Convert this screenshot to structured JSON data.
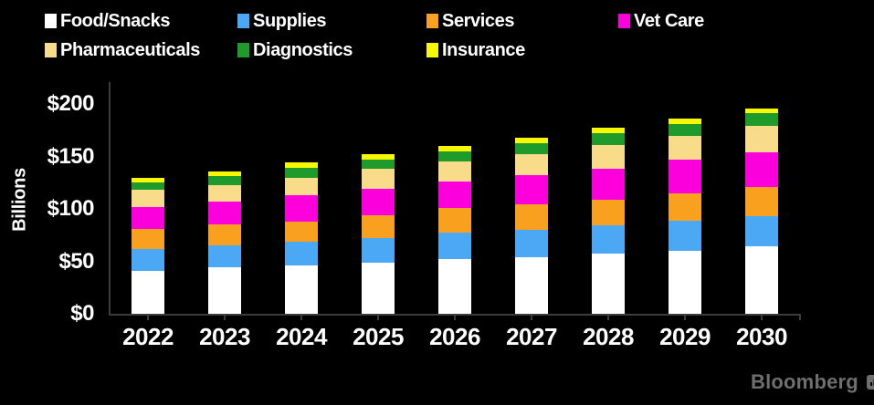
{
  "legend": {
    "items": [
      {
        "label": "Food/Snacks",
        "color": "#ffffff",
        "row": 0,
        "col": 0
      },
      {
        "label": "Supplies",
        "color": "#4ba8f5",
        "row": 0,
        "col": 1
      },
      {
        "label": "Services",
        "color": "#f9a01e",
        "row": 0,
        "col": 2
      },
      {
        "label": "Vet Care",
        "color": "#fb00dc",
        "row": 0,
        "col": 3
      },
      {
        "label": "Pharmaceuticals",
        "color": "#f9dc8a",
        "row": 1,
        "col": 0
      },
      {
        "label": "Diagnostics",
        "color": "#1e9b2b",
        "row": 1,
        "col": 1
      },
      {
        "label": "Insurance",
        "color": "#f8f800",
        "row": 1,
        "col": 2
      }
    ]
  },
  "chart_data": {
    "type": "bar",
    "stacked": true,
    "categories": [
      "2022",
      "2023",
      "2024",
      "2025",
      "2026",
      "2027",
      "2028",
      "2029",
      "2030"
    ],
    "series": [
      {
        "name": "Food/Snacks",
        "color": "#ffffff",
        "values": [
          41,
          44,
          46,
          49,
          52,
          54,
          57,
          60,
          64
        ]
      },
      {
        "name": "Supplies",
        "color": "#4ba8f5",
        "values": [
          21,
          21,
          23,
          23,
          25,
          26,
          27,
          29,
          29
        ]
      },
      {
        "name": "Services",
        "color": "#f9a01e",
        "values": [
          19,
          20,
          19,
          22,
          24,
          24,
          25,
          26,
          28
        ]
      },
      {
        "name": "Vet Care",
        "color": "#fb00dc",
        "values": [
          21,
          22,
          25,
          25,
          25,
          28,
          29,
          32,
          33
        ]
      },
      {
        "name": "Pharmaceuticals",
        "color": "#f9dc8a",
        "values": [
          16,
          16,
          17,
          19,
          19,
          20,
          23,
          23,
          25
        ]
      },
      {
        "name": "Diagnostics",
        "color": "#1e9b2b",
        "values": [
          7,
          8,
          9,
          9,
          10,
          11,
          11,
          11,
          12
        ]
      },
      {
        "name": "Insurance",
        "color": "#f8f800",
        "values": [
          5,
          5,
          5,
          5,
          5,
          5,
          5,
          5,
          5
        ]
      }
    ],
    "totals": [
      130,
      136,
      144,
      152,
      160,
      168,
      177,
      186,
      196
    ],
    "title": "",
    "xlabel": "",
    "ylabel": "Billions",
    "ytick_labels": [
      "$0",
      "$50",
      "$100",
      "$150",
      "$200"
    ],
    "ytick_values": [
      0,
      50,
      100,
      150,
      200
    ],
    "ylim": [
      0,
      221
    ],
    "grid": false,
    "legend_position": "top"
  },
  "branding": {
    "logo_text": "Bloomberg",
    "logo_color": "#6f6f6f"
  },
  "colors": {
    "background": "#000000",
    "axis": "#3d3d3d",
    "text": "#ffffff"
  }
}
